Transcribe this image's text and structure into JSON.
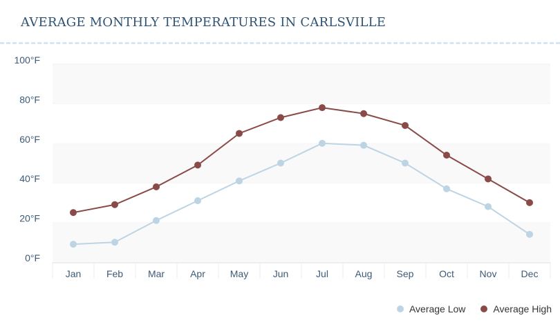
{
  "chart_data": {
    "type": "line",
    "title": "AVERAGE MONTHLY TEMPERATURES IN CARLSVILLE",
    "categories": [
      "Jan",
      "Feb",
      "Mar",
      "Apr",
      "May",
      "Jun",
      "Jul",
      "Aug",
      "Sep",
      "Oct",
      "Nov",
      "Dec"
    ],
    "yticks": [
      "0°F",
      "20°F",
      "40°F",
      "60°F",
      "80°F",
      "100°F"
    ],
    "ylim": [
      0,
      100
    ],
    "grid": true,
    "legend_placement": "bottom-right",
    "series": [
      {
        "name": "Average Low",
        "color": "#bcd4e4",
        "values": [
          9,
          10,
          21,
          31,
          41,
          50,
          60,
          59,
          50,
          37,
          28,
          14
        ]
      },
      {
        "name": "Average High",
        "color": "#8a4a48",
        "values": [
          25,
          29,
          38,
          49,
          65,
          73,
          78,
          75,
          69,
          54,
          42,
          30
        ]
      }
    ]
  }
}
